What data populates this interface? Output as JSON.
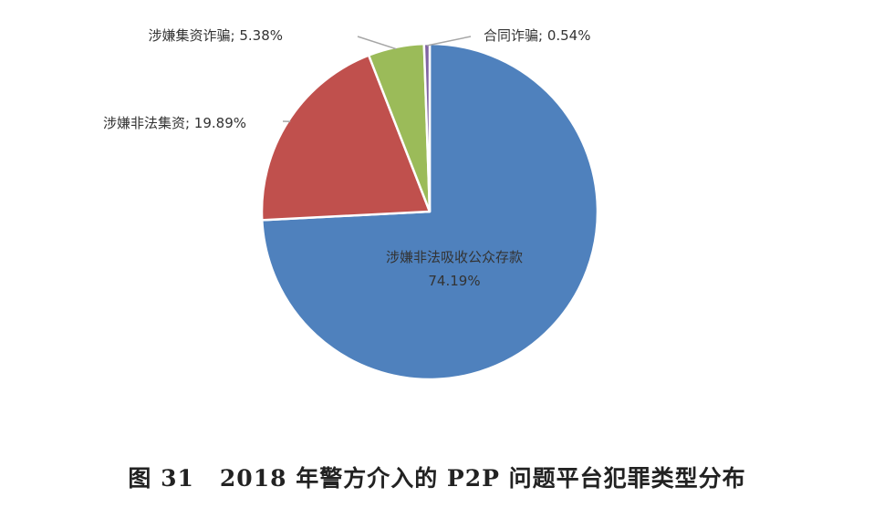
{
  "chart_data": {
    "type": "pie",
    "title": "",
    "slices": [
      {
        "label": "涉嫌非法吸收公众存款",
        "percent_label": "74.19%",
        "value": 74.19,
        "color": "#4f81bd"
      },
      {
        "label": "涉嫌非法集资",
        "percent_label": "19.89%",
        "value": 19.89,
        "color": "#c0504d"
      },
      {
        "label": "涉嫌集资诈骗",
        "percent_label": "5.38%",
        "value": 5.38,
        "color": "#9bbb59"
      },
      {
        "label": "合同诈骗",
        "percent_label": "0.54%",
        "value": 0.54,
        "color": "#8064a2"
      }
    ],
    "legend": "none"
  },
  "caption": {
    "figure_number": "图 31",
    "text": "2018 年警方介入的 P2P 问题平台犯罪类型分布"
  }
}
